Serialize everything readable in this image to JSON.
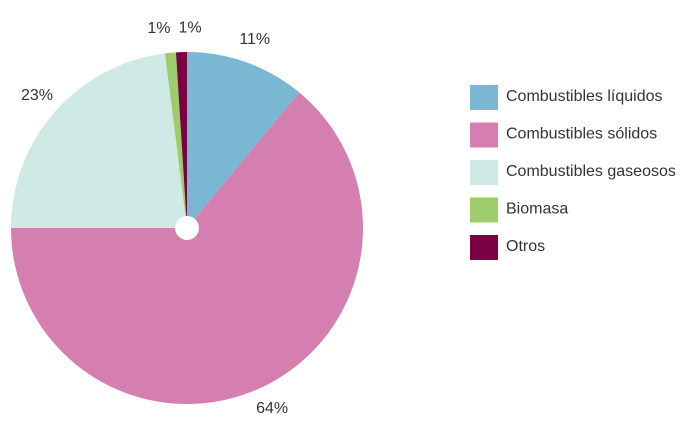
{
  "chart_data": {
    "type": "pie",
    "categories": [
      "Combustibles líquidos",
      "Combustibles sólidos",
      "Combustibles gaseosos",
      "Biomasa",
      "Otros"
    ],
    "values": [
      11,
      64,
      23,
      1,
      1
    ],
    "value_labels": [
      "11%",
      "64%",
      "23%",
      "1%",
      "1%"
    ],
    "colors": [
      "#7ab7d3",
      "#d47fb0",
      "#cfe9e5",
      "#9dcc6b",
      "#7b0044"
    ],
    "legend": "right"
  }
}
